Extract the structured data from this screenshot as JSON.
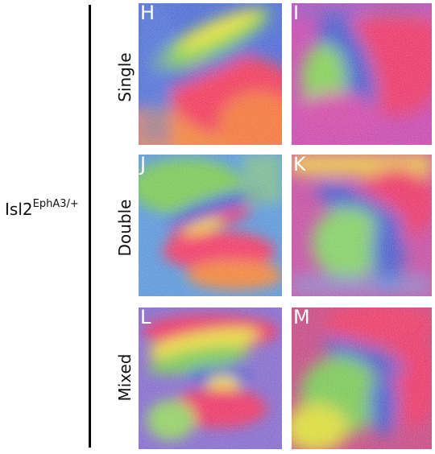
{
  "genotype": {
    "base": "Isl2",
    "superscript": "EphA3/+"
  },
  "rows": [
    {
      "label": "Single",
      "panels": [
        "H",
        "I"
      ]
    },
    {
      "label": "Double",
      "panels": [
        "J",
        "K"
      ]
    },
    {
      "label": "Mixed",
      "panels": [
        "L",
        "M"
      ]
    }
  ]
}
